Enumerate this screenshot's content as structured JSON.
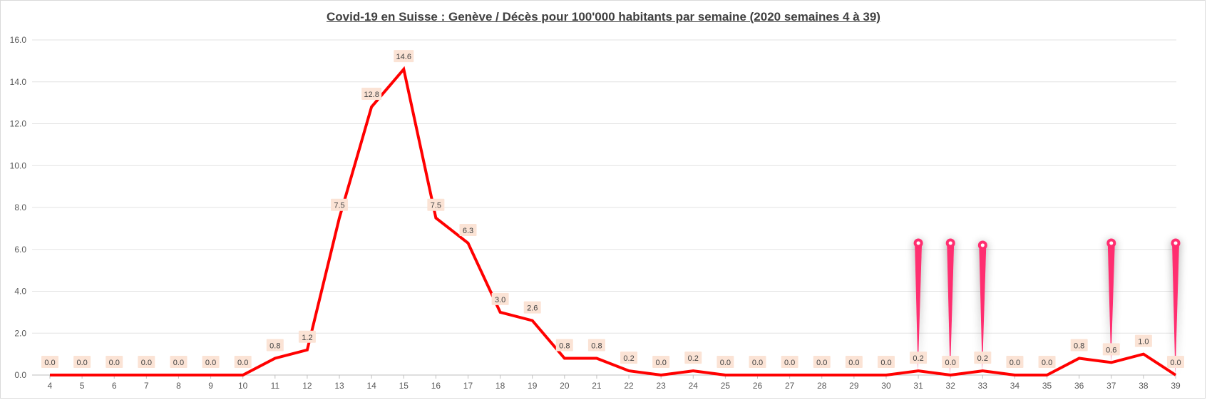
{
  "chart_data": {
    "type": "line",
    "title": "Covid-19 en Suisse : Genève / Décès pour 100'000 habitants par semaine (2020 semaines 4 à 39)",
    "xlabel": "",
    "ylabel": "",
    "ylim": [
      0,
      16
    ],
    "yticks": [
      "0.0",
      "2.0",
      "4.0",
      "6.0",
      "8.0",
      "10.0",
      "12.0",
      "14.0",
      "16.0"
    ],
    "grid": true,
    "legend": "none",
    "categories": [
      "4",
      "5",
      "6",
      "7",
      "8",
      "9",
      "10",
      "11",
      "12",
      "13",
      "14",
      "15",
      "16",
      "17",
      "18",
      "19",
      "20",
      "21",
      "22",
      "23",
      "24",
      "25",
      "26",
      "27",
      "28",
      "29",
      "30",
      "31",
      "32",
      "33",
      "34",
      "35",
      "36",
      "37",
      "38",
      "39"
    ],
    "values": [
      0.0,
      0.0,
      0.0,
      0.0,
      0.0,
      0.0,
      0.0,
      0.8,
      1.2,
      7.5,
      12.8,
      14.6,
      7.5,
      6.3,
      3.0,
      2.6,
      0.8,
      0.8,
      0.2,
      0.0,
      0.2,
      0.0,
      0.0,
      0.0,
      0.0,
      0.0,
      0.0,
      0.2,
      0.0,
      0.2,
      0.0,
      0.0,
      0.8,
      0.6,
      1.0,
      0.0
    ],
    "data_labels": [
      "0.0",
      "0.0",
      "0.0",
      "0.0",
      "0.0",
      "0.0",
      "0.0",
      "0.8",
      "1.2",
      "7.5",
      "12.8",
      "14.6",
      "7.5",
      "6.3",
      "3.0",
      "2.6",
      "0.8",
      "0.8",
      "0.2",
      "0.0",
      "0.2",
      "0.0",
      "0.0",
      "0.0",
      "0.0",
      "0.0",
      "0.0",
      "0.2",
      "0.0",
      "0.2",
      "0.0",
      "0.0",
      "0.8",
      "0.6",
      "1.0",
      "0.0"
    ],
    "markers": [
      "31",
      "32",
      "33",
      "37",
      "39"
    ],
    "colors": {
      "line": "#ff0000",
      "marker": "#ff2d6f",
      "label_bg": "#fbe3d5",
      "grid": "#e3e3e3",
      "axis": "#bfbfbf"
    }
  }
}
